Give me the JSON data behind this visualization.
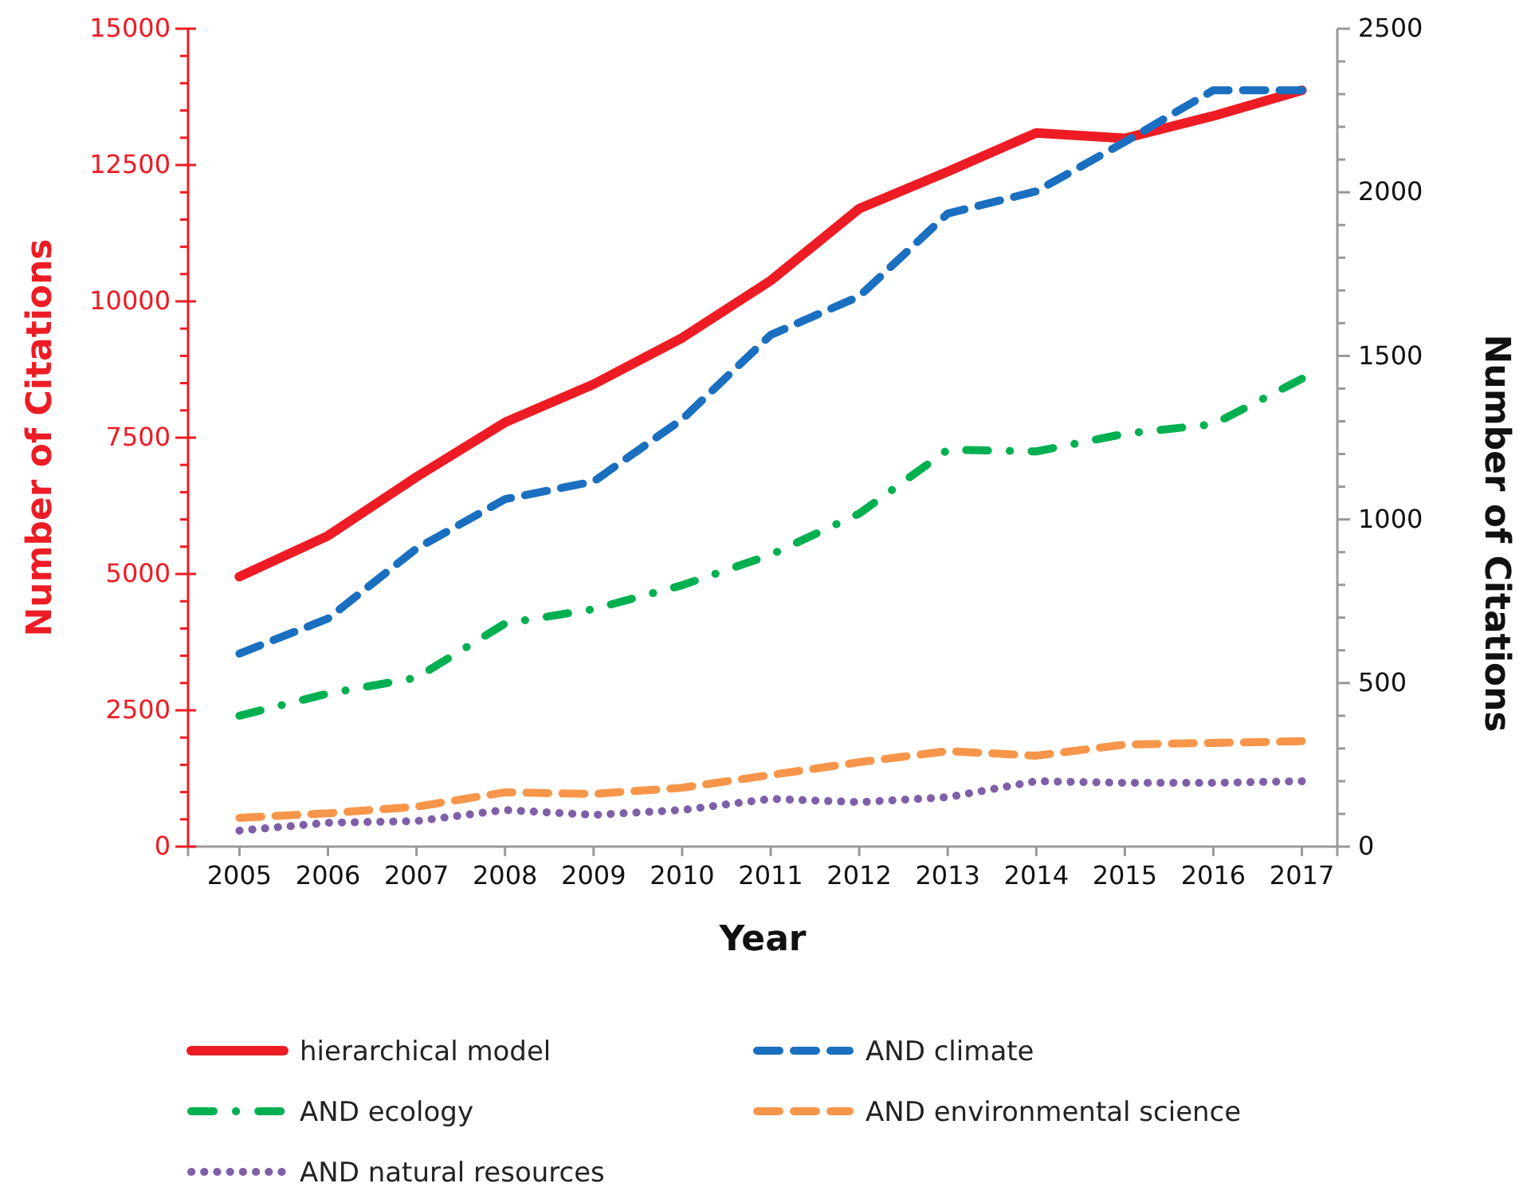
{
  "chart_data": {
    "type": "line",
    "xlabel": "Year",
    "ylabel": "Number of Citations",
    "y2label": "Number of Citations",
    "x": [
      2005,
      2006,
      2007,
      2008,
      2009,
      2010,
      2011,
      2012,
      2013,
      2014,
      2015,
      2016,
      2017
    ],
    "xlim": [
      2004.42,
      2017.4
    ],
    "xticks": [
      2005,
      2006,
      2007,
      2008,
      2009,
      2010,
      2011,
      2012,
      2013,
      2014,
      2015,
      2016,
      2017
    ],
    "ylim": [
      0,
      15000
    ],
    "yticks": [
      0,
      {
        "value": 500,
        "label": null
      },
      {
        "value": 1000,
        "label": null
      },
      {
        "value": 1500,
        "label": null
      },
      {
        "value": 2000,
        "label": null
      },
      2500,
      {
        "value": 3000,
        "label": null
      },
      {
        "value": 3500,
        "label": null
      },
      {
        "value": 4000,
        "label": null
      },
      {
        "value": 4500,
        "label": null
      },
      5000,
      {
        "value": 5500,
        "label": null
      },
      {
        "value": 6000,
        "label": null
      },
      {
        "value": 6500,
        "label": null
      },
      {
        "value": 7000,
        "label": null
      },
      7500,
      {
        "value": 8000,
        "label": null
      },
      {
        "value": 8500,
        "label": null
      },
      {
        "value": 9000,
        "label": null
      },
      {
        "value": 9500,
        "label": null
      },
      10000,
      {
        "value": 10500,
        "label": null
      },
      {
        "value": 11000,
        "label": null
      },
      {
        "value": 11500,
        "label": null
      },
      {
        "value": 12000,
        "label": null
      },
      12500,
      {
        "value": 13000,
        "label": null
      },
      {
        "value": 13500,
        "label": null
      },
      {
        "value": 14000,
        "label": null
      },
      {
        "value": 14500,
        "label": null
      },
      15000
    ],
    "y2lim": [
      0,
      2500
    ],
    "y2ticks": [
      0,
      {
        "value": 100,
        "label": null
      },
      {
        "value": 200,
        "label": null
      },
      {
        "value": 300,
        "label": null
      },
      {
        "value": 400,
        "label": null
      },
      500,
      {
        "value": 600,
        "label": null
      },
      {
        "value": 700,
        "label": null
      },
      {
        "value": 800,
        "label": null
      },
      {
        "value": 900,
        "label": null
      },
      1000,
      {
        "value": 1100,
        "label": null
      },
      {
        "value": 1200,
        "label": null
      },
      {
        "value": 1300,
        "label": null
      },
      {
        "value": 1400,
        "label": null
      },
      1500,
      {
        "value": 1600,
        "label": null
      },
      {
        "value": 1700,
        "label": null
      },
      {
        "value": 1800,
        "label": null
      },
      {
        "value": 1900,
        "label": null
      },
      2000,
      {
        "value": 2100,
        "label": null
      },
      {
        "value": 2200,
        "label": null
      },
      {
        "value": 2300,
        "label": null
      },
      {
        "value": 2400,
        "label": null
      },
      2500
    ],
    "grid": false,
    "legend": "bottom",
    "marker": "none",
    "series": [
      {
        "name": "hierarchical model",
        "color": "#ed1c24",
        "line_style": "solid",
        "values": [
          4950,
          5700,
          6780,
          7780,
          8480,
          9330,
          10380,
          11700,
          12380,
          13090,
          12990,
          13400,
          13870
        ]
      },
      {
        "name": "AND climate",
        "color": "#1b6fc0",
        "line_style": "dashed",
        "axis": "y2",
        "values": [
          590,
          697,
          911,
          1062,
          1116,
          1306,
          1564,
          1682,
          1935,
          2003,
          2154,
          2312,
          2312
        ]
      },
      {
        "name": "AND ecology",
        "color": "#00b050",
        "line_style": "dashdot",
        "axis": "y2",
        "values": [
          400,
          468,
          516,
          682,
          726,
          799,
          892,
          1018,
          1213,
          1208,
          1262,
          1291,
          1430
        ]
      },
      {
        "name": "AND environmental science",
        "color": "#f7964a",
        "line_style": "dashed",
        "axis": "y2",
        "values": [
          88,
          102,
          122,
          166,
          161,
          180,
          219,
          258,
          292,
          278,
          312,
          317,
          322
        ]
      },
      {
        "name": "AND natural resources",
        "color": "#7f60a8",
        "line_style": "dotted",
        "axis": "y2",
        "values": [
          49,
          73,
          78,
          112,
          97,
          112,
          146,
          136,
          151,
          200,
          195,
          195,
          200
        ]
      }
    ]
  }
}
